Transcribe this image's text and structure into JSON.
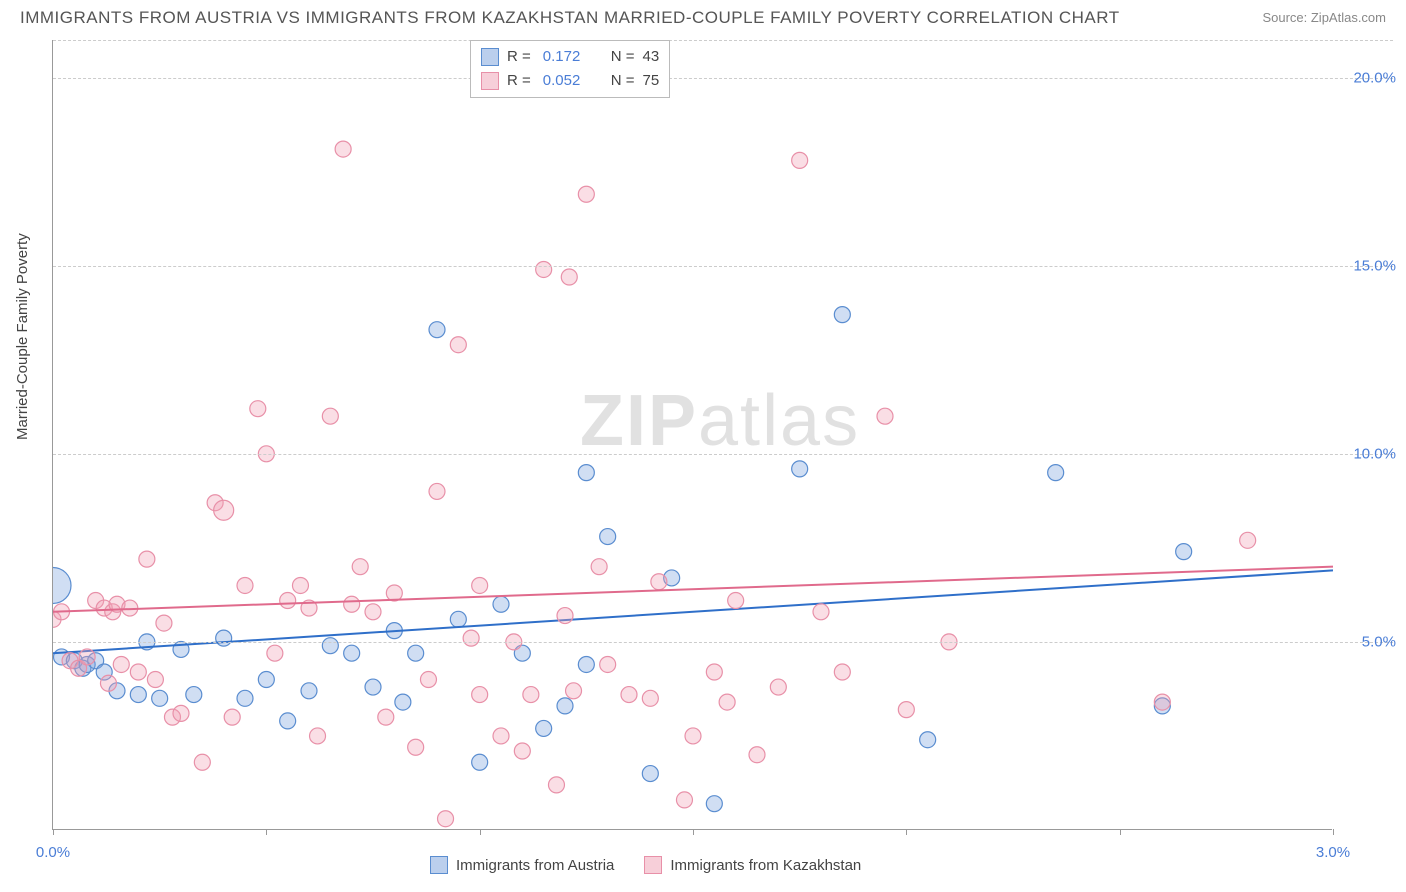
{
  "title": "IMMIGRANTS FROM AUSTRIA VS IMMIGRANTS FROM KAZAKHSTAN MARRIED-COUPLE FAMILY POVERTY CORRELATION CHART",
  "source_prefix": "Source: ",
  "source_name": "ZipAtlas.com",
  "watermark_part1": "ZIP",
  "watermark_part2": "atlas",
  "ylabel": "Married-Couple Family Poverty",
  "chart": {
    "type": "scatter",
    "xlim": [
      0.0,
      3.0
    ],
    "ylim": [
      0.0,
      21.0
    ],
    "xtick_positions": [
      0.0,
      0.5,
      1.0,
      1.5,
      2.0,
      2.5,
      3.0
    ],
    "xtick_labels": {
      "left": "0.0%",
      "right": "3.0%"
    },
    "ygrid_positions": [
      5.0,
      10.0,
      15.0,
      20.0
    ],
    "ytick_labels": [
      "5.0%",
      "10.0%",
      "15.0%",
      "20.0%"
    ],
    "background_color": "#ffffff",
    "grid_color": "#cccccc",
    "grid_dash": "4,4",
    "axis_color": "#999999",
    "tick_label_color": "#4a7dd6",
    "marker_radius": 8,
    "marker_stroke_width": 1.2,
    "trend_line_width": 2
  },
  "series": [
    {
      "key": "austria",
      "label": "Immigrants from Austria",
      "fill_color": "rgba(120,160,220,0.35)",
      "stroke_color": "#5a8dd0",
      "line_color": "#2f6fc9",
      "r_label": "R =",
      "r_value": "0.172",
      "n_label": "N =",
      "n_value": "43",
      "trend": {
        "y_at_xmin": 4.7,
        "y_at_xmax": 6.9
      },
      "points": [
        [
          0.0,
          6.5,
          18
        ],
        [
          0.02,
          4.6,
          8
        ],
        [
          0.05,
          4.5,
          8
        ],
        [
          0.07,
          4.3,
          8
        ],
        [
          0.08,
          4.4,
          8
        ],
        [
          0.1,
          4.5,
          8
        ],
        [
          0.12,
          4.2,
          8
        ],
        [
          0.15,
          3.7,
          8
        ],
        [
          0.2,
          3.6,
          8
        ],
        [
          0.22,
          5.0,
          8
        ],
        [
          0.25,
          3.5,
          8
        ],
        [
          0.3,
          4.8,
          8
        ],
        [
          0.33,
          3.6,
          8
        ],
        [
          0.4,
          5.1,
          8
        ],
        [
          0.45,
          3.5,
          8
        ],
        [
          0.5,
          4.0,
          8
        ],
        [
          0.55,
          2.9,
          8
        ],
        [
          0.6,
          3.7,
          8
        ],
        [
          0.65,
          4.9,
          8
        ],
        [
          0.7,
          4.7,
          8
        ],
        [
          0.75,
          3.8,
          8
        ],
        [
          0.8,
          5.3,
          8
        ],
        [
          0.82,
          3.4,
          8
        ],
        [
          0.85,
          4.7,
          8
        ],
        [
          0.9,
          13.3,
          8
        ],
        [
          0.95,
          5.6,
          8
        ],
        [
          1.0,
          1.8,
          8
        ],
        [
          1.05,
          6.0,
          8
        ],
        [
          1.1,
          4.7,
          8
        ],
        [
          1.15,
          2.7,
          8
        ],
        [
          1.2,
          3.3,
          8
        ],
        [
          1.25,
          4.4,
          8
        ],
        [
          1.25,
          9.5,
          8
        ],
        [
          1.3,
          7.8,
          8
        ],
        [
          1.4,
          1.5,
          8
        ],
        [
          1.45,
          6.7,
          8
        ],
        [
          1.55,
          0.7,
          8
        ],
        [
          1.75,
          9.6,
          8
        ],
        [
          1.85,
          13.7,
          8
        ],
        [
          2.05,
          2.4,
          8
        ],
        [
          2.35,
          9.5,
          8
        ],
        [
          2.6,
          3.3,
          8
        ],
        [
          2.65,
          7.4,
          8
        ]
      ]
    },
    {
      "key": "kazakhstan",
      "label": "Immigrants from Kazakhstan",
      "fill_color": "rgba(240,160,180,0.35)",
      "stroke_color": "#e890a8",
      "line_color": "#e06a8c",
      "r_label": "R =",
      "r_value": "0.052",
      "n_label": "N =",
      "n_value": "75",
      "trend": {
        "y_at_xmin": 5.8,
        "y_at_xmax": 7.0
      },
      "points": [
        [
          0.0,
          5.6,
          8
        ],
        [
          0.02,
          5.8,
          8
        ],
        [
          0.04,
          4.5,
          8
        ],
        [
          0.06,
          4.3,
          8
        ],
        [
          0.08,
          4.6,
          8
        ],
        [
          0.1,
          6.1,
          8
        ],
        [
          0.12,
          5.9,
          8
        ],
        [
          0.13,
          3.9,
          8
        ],
        [
          0.14,
          5.8,
          8
        ],
        [
          0.15,
          6.0,
          8
        ],
        [
          0.16,
          4.4,
          8
        ],
        [
          0.18,
          5.9,
          8
        ],
        [
          0.2,
          4.2,
          8
        ],
        [
          0.22,
          7.2,
          8
        ],
        [
          0.24,
          4.0,
          8
        ],
        [
          0.26,
          5.5,
          8
        ],
        [
          0.28,
          3.0,
          8
        ],
        [
          0.3,
          3.1,
          8
        ],
        [
          0.35,
          1.8,
          8
        ],
        [
          0.38,
          8.7,
          8
        ],
        [
          0.4,
          8.5,
          10
        ],
        [
          0.42,
          3.0,
          8
        ],
        [
          0.45,
          6.5,
          8
        ],
        [
          0.48,
          11.2,
          8
        ],
        [
          0.5,
          10.0,
          8
        ],
        [
          0.52,
          4.7,
          8
        ],
        [
          0.55,
          6.1,
          8
        ],
        [
          0.58,
          6.5,
          8
        ],
        [
          0.6,
          5.9,
          8
        ],
        [
          0.62,
          2.5,
          8
        ],
        [
          0.65,
          11.0,
          8
        ],
        [
          0.68,
          18.1,
          8
        ],
        [
          0.7,
          6.0,
          8
        ],
        [
          0.72,
          7.0,
          8
        ],
        [
          0.75,
          5.8,
          8
        ],
        [
          0.78,
          3.0,
          8
        ],
        [
          0.8,
          6.3,
          8
        ],
        [
          0.85,
          2.2,
          8
        ],
        [
          0.88,
          4.0,
          8
        ],
        [
          0.9,
          9.0,
          8
        ],
        [
          0.92,
          0.3,
          8
        ],
        [
          0.95,
          12.9,
          8
        ],
        [
          0.98,
          5.1,
          8
        ],
        [
          1.0,
          3.6,
          8
        ],
        [
          1.0,
          6.5,
          8
        ],
        [
          1.05,
          2.5,
          8
        ],
        [
          1.08,
          5.0,
          8
        ],
        [
          1.1,
          2.1,
          8
        ],
        [
          1.12,
          3.6,
          8
        ],
        [
          1.15,
          14.9,
          8
        ],
        [
          1.18,
          1.2,
          8
        ],
        [
          1.2,
          5.7,
          8
        ],
        [
          1.21,
          14.7,
          8
        ],
        [
          1.22,
          3.7,
          8
        ],
        [
          1.25,
          16.9,
          8
        ],
        [
          1.28,
          7.0,
          8
        ],
        [
          1.3,
          4.4,
          8
        ],
        [
          1.35,
          3.6,
          8
        ],
        [
          1.4,
          3.5,
          8
        ],
        [
          1.42,
          6.6,
          8
        ],
        [
          1.48,
          0.8,
          8
        ],
        [
          1.5,
          2.5,
          8
        ],
        [
          1.55,
          4.2,
          8
        ],
        [
          1.58,
          3.4,
          8
        ],
        [
          1.6,
          6.1,
          8
        ],
        [
          1.65,
          2.0,
          8
        ],
        [
          1.75,
          17.8,
          8
        ],
        [
          1.8,
          5.8,
          8
        ],
        [
          1.85,
          4.2,
          8
        ],
        [
          1.95,
          11.0,
          8
        ],
        [
          2.0,
          3.2,
          8
        ],
        [
          2.6,
          3.4,
          8
        ],
        [
          2.8,
          7.7,
          8
        ],
        [
          2.1,
          5.0,
          8
        ],
        [
          1.7,
          3.8,
          8
        ]
      ]
    }
  ]
}
